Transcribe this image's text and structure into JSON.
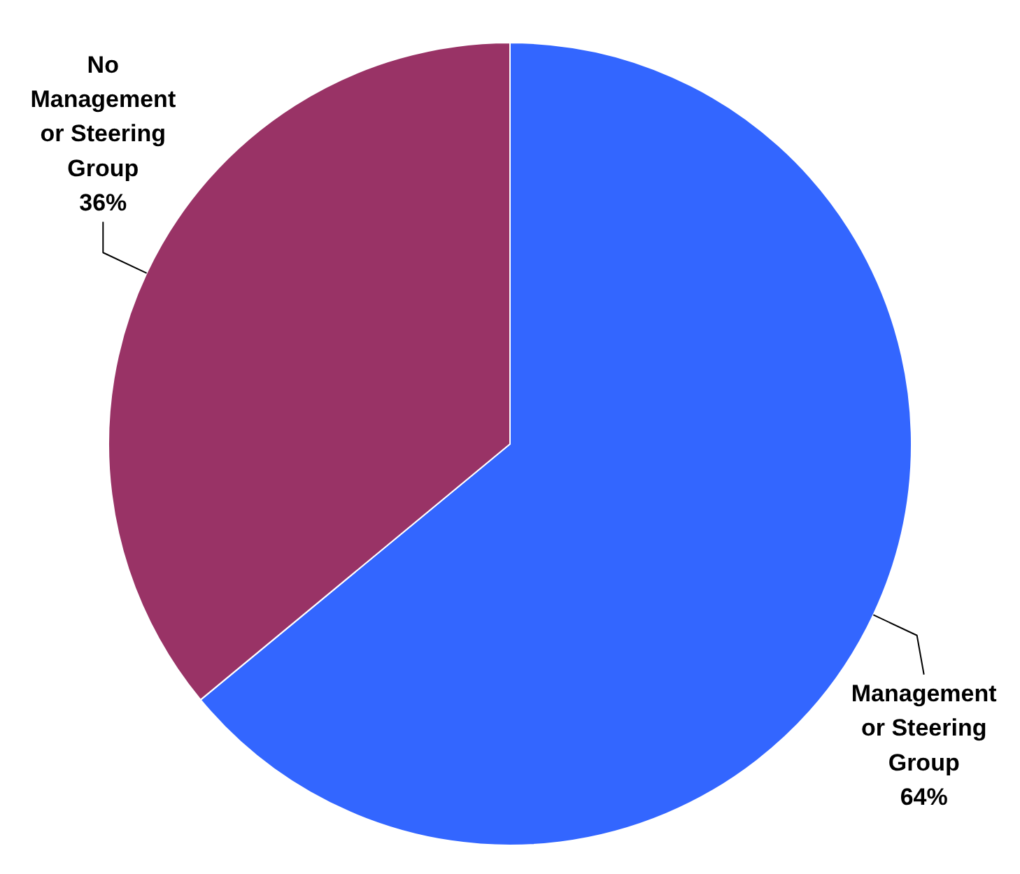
{
  "chart_data": {
    "type": "pie",
    "categories": [
      "Management or Steering Group",
      "No Management or Steering Group"
    ],
    "values": [
      64,
      36
    ],
    "colors": [
      "#3366ff",
      "#993366"
    ],
    "value_labels": [
      "64%",
      "36%"
    ]
  }
}
